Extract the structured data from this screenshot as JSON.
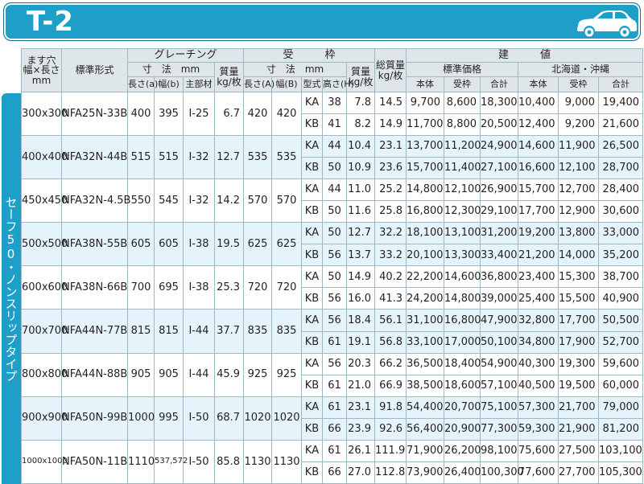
{
  "header": {
    "title": "T-2",
    "icon": "car-icon"
  },
  "sidebar": {
    "label": "セーフ50・ノンスリップタイプ"
  },
  "table": {
    "head": {
      "size": "ます穴 幅×長さ mm",
      "standard_model": "標準形式",
      "grating": "グレーチング",
      "grating_dims": "寸　法　mm",
      "grating_weight": "質量 kg/枚",
      "grating_length": "長さ(a)",
      "grating_width": "幅(b)",
      "grating_main": "主部材",
      "frame": "受　　　枠",
      "frame_dims": "寸　法　mm",
      "frame_weight": "質量 kg/枚",
      "frame_length": "長さ(A)",
      "frame_width": "幅(B)",
      "frame_type": "型式",
      "frame_height": "高さ(H)",
      "total_weight": "総質量 kg/枚",
      "price": "建　　　値",
      "standard_price": "標準価格",
      "hokkaido_price": "北海道・沖縄",
      "body": "本体",
      "frame_col": "受枠",
      "total": "合計"
    },
    "groups": [
      {
        "size": "300x300",
        "model": "NFA25N-33B",
        "ga": "400",
        "gb": "395",
        "gm": "I-25",
        "gw": "6.7",
        "fa": "420",
        "fb": "420",
        "rows": [
          {
            "type": "KA",
            "h": "38",
            "fw": "7.8",
            "tw": "14.5",
            "sb": "9,700",
            "sf": "8,600",
            "st": "18,300",
            "hb": "10,400",
            "hf": "9,000",
            "ht": "19,400"
          },
          {
            "type": "KB",
            "h": "41",
            "fw": "8.2",
            "tw": "14.9",
            "sb": "11,700",
            "sf": "8,800",
            "st": "20,500",
            "hb": "12,400",
            "hf": "9,200",
            "ht": "21,600"
          }
        ]
      },
      {
        "size": "400x400",
        "model": "NFA32N-44B",
        "ga": "515",
        "gb": "515",
        "gm": "I-32",
        "gw": "12.7",
        "fa": "535",
        "fb": "535",
        "rows": [
          {
            "type": "KA",
            "h": "44",
            "fw": "10.4",
            "tw": "23.1",
            "sb": "13,700",
            "sf": "11,200",
            "st": "24,900",
            "hb": "14,600",
            "hf": "11,900",
            "ht": "26,500"
          },
          {
            "type": "KB",
            "h": "50",
            "fw": "10.9",
            "tw": "23.6",
            "sb": "15,700",
            "sf": "11,400",
            "st": "27,100",
            "hb": "16,600",
            "hf": "12,100",
            "ht": "28,700"
          }
        ]
      },
      {
        "size": "450x450",
        "model": "NFA32N-4.5B",
        "ga": "550",
        "gb": "545",
        "gm": "I-32",
        "gw": "14.2",
        "fa": "570",
        "fb": "570",
        "rows": [
          {
            "type": "KA",
            "h": "44",
            "fw": "11.0",
            "tw": "25.2",
            "sb": "14,800",
            "sf": "12,100",
            "st": "26,900",
            "hb": "15,700",
            "hf": "12,700",
            "ht": "28,400"
          },
          {
            "type": "KB",
            "h": "50",
            "fw": "11.6",
            "tw": "25.8",
            "sb": "16,800",
            "sf": "12,300",
            "st": "29,100",
            "hb": "17,700",
            "hf": "12,900",
            "ht": "30,600"
          }
        ]
      },
      {
        "size": "500x500",
        "model": "NFA38N-55B",
        "ga": "605",
        "gb": "605",
        "gm": "I-38",
        "gw": "19.5",
        "fa": "625",
        "fb": "625",
        "rows": [
          {
            "type": "KA",
            "h": "50",
            "fw": "12.7",
            "tw": "32.2",
            "sb": "18,100",
            "sf": "13,100",
            "st": "31,200",
            "hb": "19,200",
            "hf": "13,800",
            "ht": "33,000"
          },
          {
            "type": "KB",
            "h": "56",
            "fw": "13.7",
            "tw": "33.2",
            "sb": "20,100",
            "sf": "13,300",
            "st": "33,400",
            "hb": "21,200",
            "hf": "14,000",
            "ht": "35,200"
          }
        ]
      },
      {
        "size": "600x600",
        "model": "NFA38N-66B",
        "ga": "700",
        "gb": "695",
        "gm": "I-38",
        "gw": "25.3",
        "fa": "720",
        "fb": "720",
        "rows": [
          {
            "type": "KA",
            "h": "50",
            "fw": "14.9",
            "tw": "40.2",
            "sb": "22,200",
            "sf": "14,600",
            "st": "36,800",
            "hb": "23,400",
            "hf": "15,300",
            "ht": "38,700"
          },
          {
            "type": "KB",
            "h": "56",
            "fw": "16.0",
            "tw": "41.3",
            "sb": "24,200",
            "sf": "14,800",
            "st": "39,000",
            "hb": "25,400",
            "hf": "15,500",
            "ht": "40,900"
          }
        ]
      },
      {
        "size": "700x700",
        "model": "NFA44N-77B",
        "ga": "815",
        "gb": "815",
        "gm": "I-44",
        "gw": "37.7",
        "fa": "835",
        "fb": "835",
        "rows": [
          {
            "type": "KA",
            "h": "56",
            "fw": "18.4",
            "tw": "56.1",
            "sb": "31,100",
            "sf": "16,800",
            "st": "47,900",
            "hb": "32,800",
            "hf": "17,700",
            "ht": "50,500"
          },
          {
            "type": "KB",
            "h": "61",
            "fw": "19.1",
            "tw": "56.8",
            "sb": "33,100",
            "sf": "17,000",
            "st": "50,100",
            "hb": "34,800",
            "hf": "17,900",
            "ht": "52,700"
          }
        ]
      },
      {
        "size": "800x800",
        "model": "NFA44N-88B",
        "ga": "905",
        "gb": "905",
        "gm": "I-44",
        "gw": "45.9",
        "fa": "925",
        "fb": "925",
        "rows": [
          {
            "type": "KA",
            "h": "56",
            "fw": "20.3",
            "tw": "66.2",
            "sb": "36,500",
            "sf": "18,400",
            "st": "54,900",
            "hb": "40,300",
            "hf": "19,300",
            "ht": "59,600"
          },
          {
            "type": "KB",
            "h": "61",
            "fw": "21.0",
            "tw": "66.9",
            "sb": "38,500",
            "sf": "18,600",
            "st": "57,100",
            "hb": "40,500",
            "hf": "19,500",
            "ht": "60,000"
          }
        ]
      },
      {
        "size": "900x900",
        "model": "NFA50N-99B",
        "ga": "1000",
        "gb": "995",
        "gm": "I-50",
        "gw": "68.7",
        "fa": "1020",
        "fb": "1020",
        "rows": [
          {
            "type": "KA",
            "h": "61",
            "fw": "23.1",
            "tw": "91.8",
            "sb": "54,400",
            "sf": "20,700",
            "st": "75,100",
            "hb": "57,300",
            "hf": "21,700",
            "ht": "79,000"
          },
          {
            "type": "KB",
            "h": "66",
            "fw": "23.9",
            "tw": "92.6",
            "sb": "56,400",
            "sf": "20,900",
            "st": "77,300",
            "hb": "59,300",
            "hf": "21,900",
            "ht": "81,200"
          }
        ]
      },
      {
        "size": "1000x1000",
        "model": "NFA50N-11B",
        "ga": "1110",
        "gb": "537,572",
        "gm": "I-50",
        "gw": "85.8",
        "fa": "1130",
        "fb": "1130",
        "rows": [
          {
            "type": "KA",
            "h": "61",
            "fw": "26.1",
            "tw": "111.9",
            "sb": "71,900",
            "sf": "26,200",
            "st": "98,100",
            "hb": "75,600",
            "hf": "27,500",
            "ht": "103,100"
          },
          {
            "type": "KB",
            "h": "66",
            "fw": "27.0",
            "tw": "112.8",
            "sb": "73,900",
            "sf": "26,400",
            "st": "100,300",
            "hb": "77,600",
            "hf": "27,700",
            "ht": "105,300"
          }
        ]
      }
    ]
  }
}
